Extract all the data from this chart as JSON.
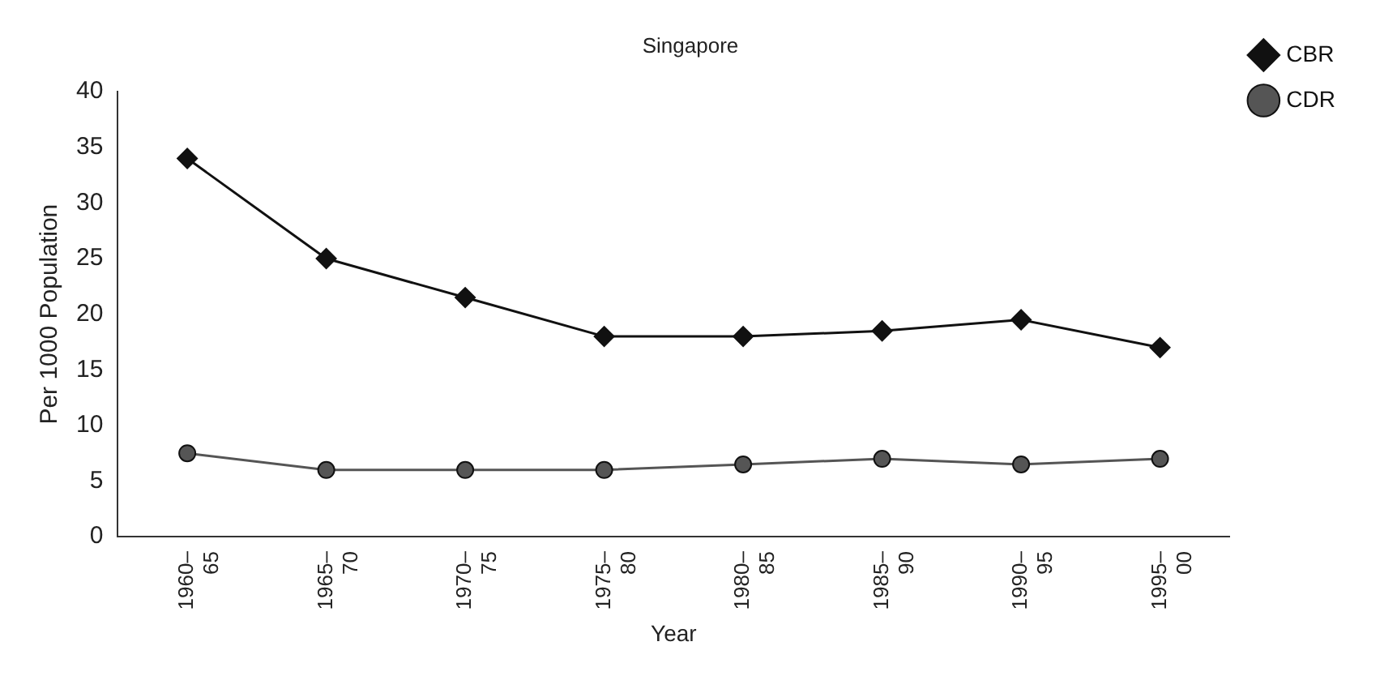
{
  "chart_data": {
    "type": "line",
    "title": "Singapore",
    "xlabel": "Year",
    "ylabel": "Per 1000 Population",
    "categories": [
      "1960–65",
      "1965–70",
      "1970–75",
      "1975–80",
      "1980–85",
      "1985–90",
      "1990–95",
      "1995–00"
    ],
    "series": [
      {
        "name": "CBR",
        "color": "#111111",
        "marker": "diamond",
        "values": [
          34,
          25,
          21.5,
          18,
          18,
          18.5,
          19.5,
          17
        ]
      },
      {
        "name": "CDR",
        "color": "#555555",
        "marker": "circle",
        "values": [
          7.5,
          6,
          6,
          6,
          6.5,
          7,
          6.5,
          7
        ]
      }
    ],
    "ylim": [
      0,
      40
    ],
    "yticks": [
      0,
      5,
      10,
      15,
      20,
      25,
      30,
      35,
      40
    ],
    "grid": false,
    "legend": "top right",
    "line_style": "solid"
  }
}
